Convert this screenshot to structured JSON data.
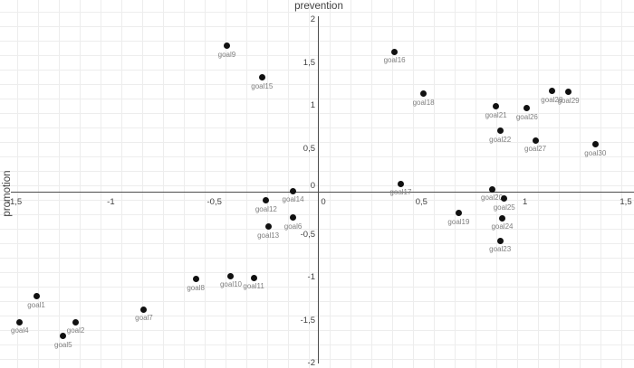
{
  "chart_data": {
    "type": "scatter",
    "title": "prevention",
    "ylabel": "promotion",
    "xlim": [
      -1.5,
      1.5
    ],
    "ylim": [
      -2,
      2
    ],
    "grid": "faint spreadsheet cell grid, no legend",
    "decimal_separator": ",",
    "x_ticks": [
      {
        "value": -1.5,
        "label": "-1,5"
      },
      {
        "value": -1,
        "label": "-1"
      },
      {
        "value": -0.5,
        "label": "-0,5"
      },
      {
        "value": 0,
        "label": "0"
      },
      {
        "value": 0.5,
        "label": "0,5"
      },
      {
        "value": 1,
        "label": "1"
      },
      {
        "value": 1.5,
        "label": "1,5"
      }
    ],
    "y_ticks": [
      {
        "value": 2,
        "label": "2"
      },
      {
        "value": 1.5,
        "label": "1,5"
      },
      {
        "value": 1,
        "label": "1"
      },
      {
        "value": 0.5,
        "label": "0,5"
      },
      {
        "value": 0,
        "label": "0"
      },
      {
        "value": -0.5,
        "label": "-0,5"
      },
      {
        "value": -1,
        "label": "-1"
      },
      {
        "value": -1.5,
        "label": "-1,5"
      },
      {
        "value": -2,
        "label": "-2"
      }
    ],
    "points": [
      {
        "name": "goal1",
        "x": -1.36,
        "y": -1.22
      },
      {
        "name": "goal2",
        "x": -1.17,
        "y": -1.52
      },
      {
        "name": "goal4",
        "x": -1.44,
        "y": -1.52
      },
      {
        "name": "goal5",
        "x": -1.23,
        "y": -1.68
      },
      {
        "name": "goal6",
        "x": -0.12,
        "y": -0.3
      },
      {
        "name": "goal7",
        "x": -0.84,
        "y": -1.37
      },
      {
        "name": "goal8",
        "x": -0.59,
        "y": -1.02
      },
      {
        "name": "goal9",
        "x": -0.44,
        "y": 1.7
      },
      {
        "name": "goal10",
        "x": -0.42,
        "y": -0.98
      },
      {
        "name": "goal11",
        "x": -0.31,
        "y": -1.0
      },
      {
        "name": "goal12",
        "x": -0.25,
        "y": -0.1
      },
      {
        "name": "goal13",
        "x": -0.24,
        "y": -0.41
      },
      {
        "name": "goal14",
        "x": -0.12,
        "y": 0.01
      },
      {
        "name": "goal15",
        "x": -0.27,
        "y": 1.33
      },
      {
        "name": "goal16",
        "x": 0.37,
        "y": 1.63
      },
      {
        "name": "goal17",
        "x": 0.4,
        "y": 0.09
      },
      {
        "name": "goal18",
        "x": 0.51,
        "y": 1.14
      },
      {
        "name": "goal19",
        "x": 0.68,
        "y": -0.25
      },
      {
        "name": "goal20",
        "x": 0.84,
        "y": 0.03
      },
      {
        "name": "goal21",
        "x": 0.86,
        "y": 0.99
      },
      {
        "name": "goal22",
        "x": 0.88,
        "y": 0.71
      },
      {
        "name": "goal23",
        "x": 0.88,
        "y": -0.57
      },
      {
        "name": "goal24",
        "x": 0.89,
        "y": -0.31
      },
      {
        "name": "goal25",
        "x": 0.9,
        "y": -0.08
      },
      {
        "name": "goal26",
        "x": 1.01,
        "y": 0.97
      },
      {
        "name": "goal27",
        "x": 1.05,
        "y": 0.6
      },
      {
        "name": "goal28",
        "x": 1.13,
        "y": 1.17
      },
      {
        "name": "goal29",
        "x": 1.21,
        "y": 1.16
      },
      {
        "name": "goal30",
        "x": 1.34,
        "y": 0.55
      }
    ],
    "colors": {
      "point": "#111111",
      "point_label": "#7f7f7f",
      "axis_line": "#4d4d4d",
      "tick_label": "#3f3f3f",
      "grid_line": "#ededed",
      "background": "#ffffff"
    }
  }
}
